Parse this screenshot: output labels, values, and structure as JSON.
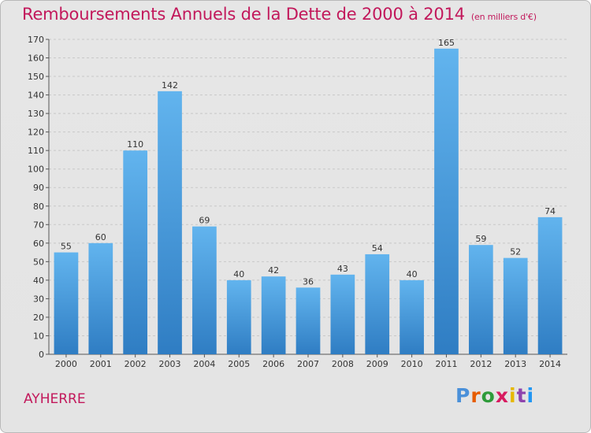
{
  "title": "Remboursements Annuels de la Dette de 2000 à 2014",
  "subtitle": "(en milliers d'€)",
  "commune": "AYHERRE",
  "logo": {
    "text": "Proxiti",
    "colors": [
      "#4a90d9",
      "#e65c00",
      "#2e9b3a",
      "#d81b60",
      "#e6b800",
      "#8e44ad",
      "#2196f3"
    ]
  },
  "colors": {
    "title": "#c2185b",
    "bar_top": "#62b4ee",
    "bar_bottom": "#2f7dc3",
    "grid": "#c8c8c8",
    "axis": "#555555"
  },
  "chart_data": {
    "type": "bar",
    "title": "Remboursements Annuels de la Dette de 2000 à 2014",
    "ylabel": "en milliers d'€",
    "xlabel": "",
    "ylim": [
      0,
      170
    ],
    "ytick_step": 10,
    "grid": true,
    "categories": [
      "2000",
      "2001",
      "2002",
      "2003",
      "2004",
      "2005",
      "2006",
      "2007",
      "2008",
      "2009",
      "2010",
      "2011",
      "2012",
      "2013",
      "2014"
    ],
    "values": [
      55,
      60,
      110,
      142,
      69,
      40,
      42,
      36,
      43,
      54,
      40,
      165,
      59,
      52,
      74
    ]
  }
}
